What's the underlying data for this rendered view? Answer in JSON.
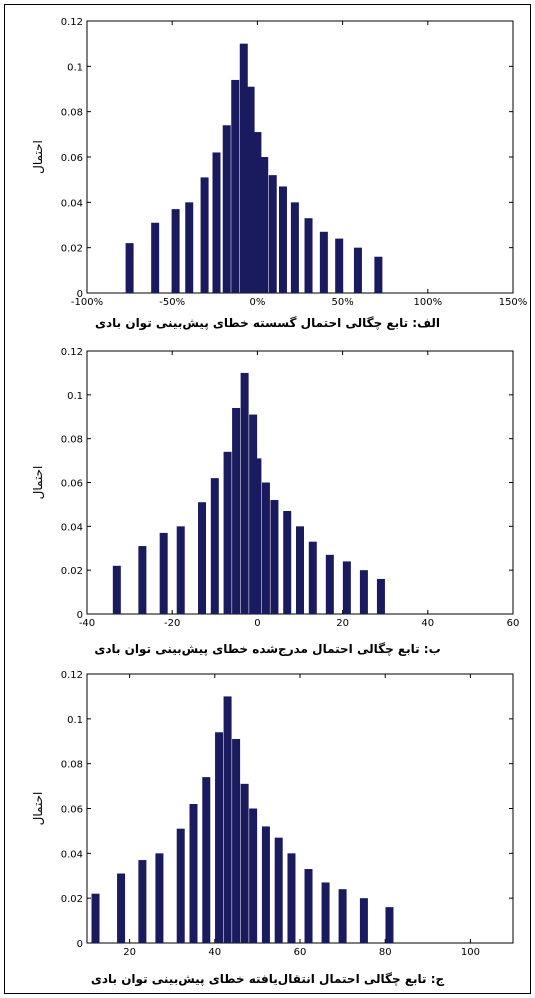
{
  "colors": {
    "bar": "#1a1a5e",
    "axis": "#000000"
  },
  "chart_data": [
    {
      "type": "bar",
      "caption": "الف: تابع چگالی احتمال گسسته خطای پیش‌بینی توان بادی",
      "ylabel": "احتمال",
      "xlim": [
        -100,
        150
      ],
      "ylim": [
        0,
        0.12
      ],
      "xticks": [
        "-100%",
        "-50%",
        "0%",
        "50%",
        "100%",
        "150%"
      ],
      "xtick_values": [
        -100,
        -50,
        0,
        50,
        100,
        150
      ],
      "yticks": [
        "0",
        "0.02",
        "0.04",
        "0.06",
        "0.08",
        "0.1",
        "0.12"
      ],
      "x": [
        -75,
        -60,
        -48,
        -40,
        -31,
        -24,
        -18,
        -13,
        -8,
        -4,
        0,
        4,
        9,
        15,
        22,
        30,
        39,
        48,
        59,
        71,
        84,
        99,
        115
      ],
      "values": [
        0.022,
        0.031,
        0.037,
        0.04,
        0.051,
        0.062,
        0.074,
        0.094,
        0.11,
        0.091,
        0.071,
        0.06,
        0.052,
        0.047,
        0.04,
        0.033,
        0.027,
        0.024,
        0.02,
        0.016,
        0.0,
        0.0,
        0.0
      ]
    },
    {
      "type": "bar",
      "caption": "ب: تابع چگالی احتمال مدرج‌شده خطای پیش‌بینی توان بادی",
      "ylabel": "احتمال",
      "xlim": [
        -40,
        60
      ],
      "ylim": [
        0,
        0.12
      ],
      "xticks": [
        "-40",
        "-20",
        "0",
        "20",
        "40",
        "60"
      ],
      "xtick_values": [
        -40,
        -20,
        0,
        20,
        40,
        60
      ],
      "yticks": [
        "0",
        "0.02",
        "0.04",
        "0.06",
        "0.08",
        "0.1",
        "0.12"
      ],
      "x": [
        -33,
        -27,
        -22,
        -18,
        -13,
        -10,
        -7,
        -5,
        -3,
        -1,
        0,
        2,
        4,
        7,
        10,
        13,
        17,
        21,
        25,
        29,
        34,
        40,
        47
      ],
      "values": [
        0.022,
        0.031,
        0.037,
        0.04,
        0.051,
        0.062,
        0.074,
        0.094,
        0.11,
        0.091,
        0.071,
        0.06,
        0.052,
        0.047,
        0.04,
        0.033,
        0.027,
        0.024,
        0.02,
        0.016,
        0.0,
        0.0,
        0.0
      ]
    },
    {
      "type": "bar",
      "caption": "ج: تابع چگالی احتمال انتقال‌یافته خطای پیش‌بینی توان بادی",
      "ylabel": "احتمال",
      "xlim": [
        10,
        110
      ],
      "ylim": [
        0,
        0.12
      ],
      "xticks": [
        "20",
        "40",
        "60",
        "80",
        "100"
      ],
      "xtick_values": [
        20,
        40,
        60,
        80,
        100
      ],
      "yticks": [
        "0",
        "0.02",
        "0.04",
        "0.06",
        "0.08",
        "0.1",
        "0.12"
      ],
      "x": [
        12,
        18,
        23,
        27,
        32,
        35,
        38,
        41,
        43,
        45,
        47,
        49,
        52,
        55,
        58,
        62,
        66,
        70,
        75,
        81,
        88,
        95,
        102
      ],
      "values": [
        0.022,
        0.031,
        0.037,
        0.04,
        0.051,
        0.062,
        0.074,
        0.094,
        0.11,
        0.091,
        0.071,
        0.06,
        0.052,
        0.047,
        0.04,
        0.033,
        0.027,
        0.024,
        0.02,
        0.016,
        0.0,
        0.0,
        0.0
      ]
    }
  ]
}
